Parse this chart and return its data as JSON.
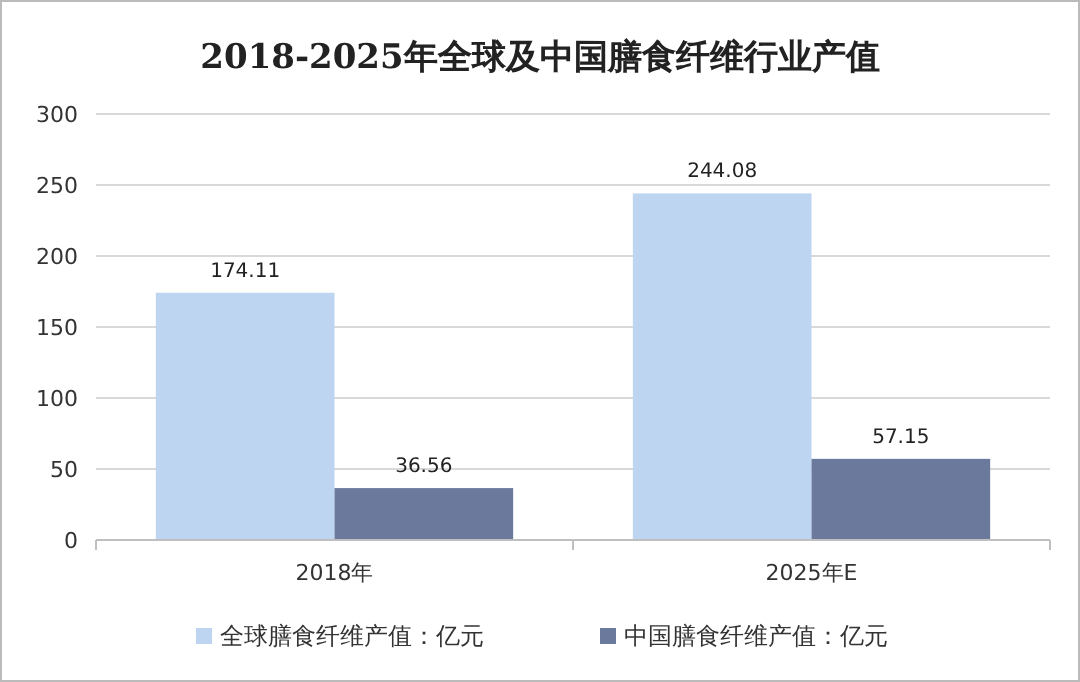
{
  "chart_data": {
    "type": "bar",
    "title": "2018-2025年全球及中国膳食纤维行业产值",
    "categories": [
      "2018年",
      "2025年E"
    ],
    "series": [
      {
        "name": "全球膳食纤维产值：亿元",
        "color": "#bdd5f1",
        "values": [
          174.11,
          244.08
        ]
      },
      {
        "name": "中国膳食纤维产值：亿元",
        "color": "#6b7a9c",
        "values": [
          36.56,
          57.15
        ]
      }
    ],
    "ylim": [
      0,
      300
    ],
    "yticks": [
      0,
      50,
      100,
      150,
      200,
      250,
      300
    ],
    "grid": "y",
    "legend": "bottom",
    "data_labels": true
  }
}
